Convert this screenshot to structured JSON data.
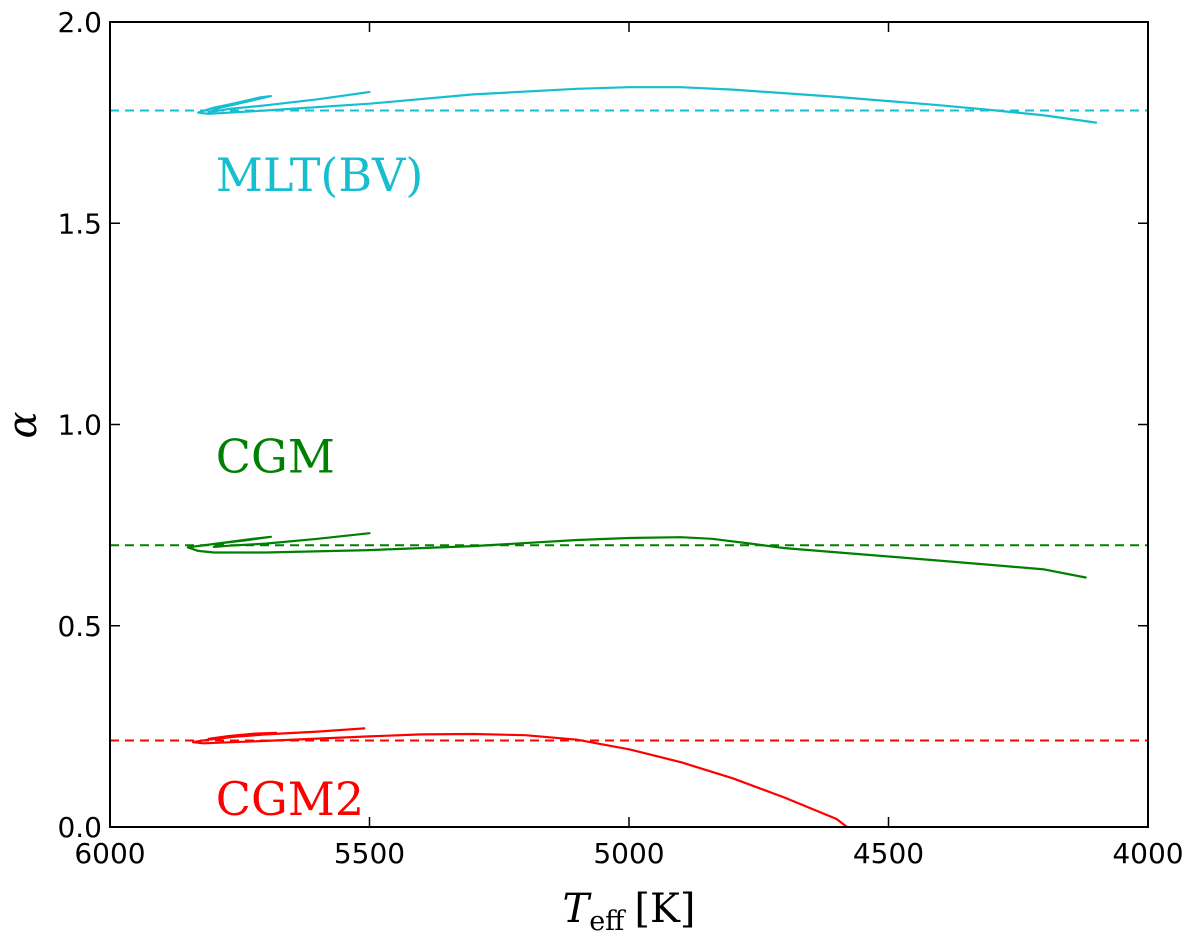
{
  "chart_data": {
    "type": "line",
    "title": "",
    "xlabel": {
      "symbol": "T",
      "subscript": "eff",
      "unit": "[K]"
    },
    "ylabel": "α",
    "xlim": [
      6000,
      4000
    ],
    "ylim": [
      0.0,
      2.0
    ],
    "x_ticks": [
      6000,
      5500,
      5000,
      4500,
      4000
    ],
    "x_tick_labels": [
      "6000",
      "5500",
      "5000",
      "4500",
      "4000"
    ],
    "y_ticks": [
      0.0,
      0.5,
      1.0,
      1.5,
      2.0
    ],
    "y_tick_labels": [
      "0.0",
      "0.5",
      "1.0",
      "1.5",
      "2.0"
    ],
    "grid": false,
    "series": [
      {
        "name": "MLT(BV)",
        "color": "#17becf",
        "reference_alpha": 1.78,
        "points": [
          [
            5500,
            1.826
          ],
          [
            5600,
            1.808
          ],
          [
            5700,
            1.793
          ],
          [
            5770,
            1.784
          ],
          [
            5810,
            1.776
          ],
          [
            5790,
            1.786
          ],
          [
            5750,
            1.798
          ],
          [
            5690,
            1.816
          ],
          [
            5710,
            1.813
          ],
          [
            5760,
            1.798
          ],
          [
            5800,
            1.787
          ],
          [
            5830,
            1.775
          ],
          [
            5810,
            1.772
          ],
          [
            5700,
            1.78
          ],
          [
            5500,
            1.797
          ],
          [
            5300,
            1.82
          ],
          [
            5100,
            1.834
          ],
          [
            5000,
            1.838
          ],
          [
            4900,
            1.838
          ],
          [
            4800,
            1.832
          ],
          [
            4600,
            1.814
          ],
          [
            4400,
            1.793
          ],
          [
            4300,
            1.781
          ],
          [
            4200,
            1.768
          ],
          [
            4100,
            1.75
          ]
        ]
      },
      {
        "name": "CGM",
        "color": "#008000",
        "reference_alpha": 0.7,
        "points": [
          [
            5500,
            0.73
          ],
          [
            5600,
            0.716
          ],
          [
            5700,
            0.704
          ],
          [
            5770,
            0.699
          ],
          [
            5800,
            0.696
          ],
          [
            5780,
            0.706
          ],
          [
            5740,
            0.712
          ],
          [
            5690,
            0.721
          ],
          [
            5730,
            0.715
          ],
          [
            5800,
            0.703
          ],
          [
            5850,
            0.695
          ],
          [
            5830,
            0.686
          ],
          [
            5800,
            0.682
          ],
          [
            5700,
            0.682
          ],
          [
            5500,
            0.688
          ],
          [
            5300,
            0.698
          ],
          [
            5100,
            0.713
          ],
          [
            5000,
            0.718
          ],
          [
            4900,
            0.72
          ],
          [
            4840,
            0.716
          ],
          [
            4760,
            0.703
          ],
          [
            4700,
            0.693
          ],
          [
            4500,
            0.672
          ],
          [
            4300,
            0.651
          ],
          [
            4200,
            0.64
          ],
          [
            4120,
            0.62
          ]
        ]
      },
      {
        "name": "CGM2",
        "color": "#ff0000",
        "reference_alpha": 0.215,
        "points": [
          [
            5510,
            0.245
          ],
          [
            5600,
            0.237
          ],
          [
            5700,
            0.23
          ],
          [
            5760,
            0.224
          ],
          [
            5810,
            0.219
          ],
          [
            5770,
            0.226
          ],
          [
            5720,
            0.232
          ],
          [
            5680,
            0.234
          ],
          [
            5710,
            0.231
          ],
          [
            5760,
            0.224
          ],
          [
            5810,
            0.217
          ],
          [
            5840,
            0.211
          ],
          [
            5820,
            0.208
          ],
          [
            5700,
            0.214
          ],
          [
            5500,
            0.225
          ],
          [
            5400,
            0.23
          ],
          [
            5300,
            0.231
          ],
          [
            5200,
            0.228
          ],
          [
            5100,
            0.217
          ],
          [
            5000,
            0.193
          ],
          [
            4900,
            0.161
          ],
          [
            4800,
            0.121
          ],
          [
            4700,
            0.073
          ],
          [
            4600,
            0.02
          ],
          [
            4580,
            0.0
          ]
        ]
      }
    ],
    "annotations": [
      {
        "text": "MLT(BV)",
        "x": 5800,
        "y": 1.62,
        "color": "#17becf"
      },
      {
        "text": "CGM",
        "x": 5800,
        "y": 0.92,
        "color": "#008000"
      },
      {
        "text": "CGM2",
        "x": 5800,
        "y": 0.07,
        "color": "#ff0000"
      }
    ]
  }
}
